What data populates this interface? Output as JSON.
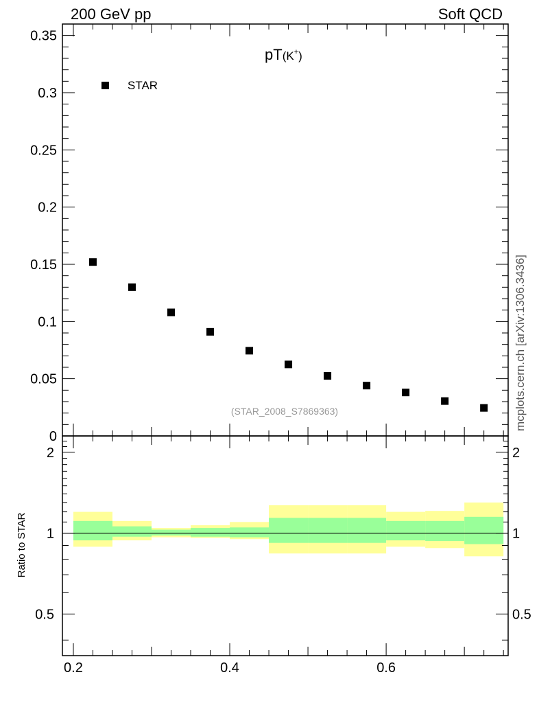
{
  "header": {
    "left": "200 GeV pp",
    "right": "Soft QCD"
  },
  "side_label": "mcplots.cern.ch [arXiv:1306.3436]",
  "chart_data": [
    {
      "type": "scatter",
      "title_main": "pT",
      "title_sub": "(K",
      "title_sup": "+",
      "title_close": ")",
      "legend": {
        "label": "STAR",
        "placement": "top-left"
      },
      "reference": "(STAR_2008_S7869363)",
      "xlim": [
        0.186,
        0.756
      ],
      "ylim": [
        0,
        0.36
      ],
      "y_ticks": [
        0,
        0.05,
        0.1,
        0.15,
        0.2,
        0.25,
        0.3,
        0.35
      ],
      "y_tick_labels": [
        "0",
        "0.05",
        "0.1",
        "0.15",
        "0.2",
        "0.25",
        "0.3",
        "0.35"
      ],
      "series": [
        {
          "name": "STAR",
          "color": "#000000",
          "x": [
            0.225,
            0.275,
            0.325,
            0.375,
            0.425,
            0.475,
            0.525,
            0.575,
            0.625,
            0.675,
            0.725
          ],
          "y": [
            0.152,
            0.13,
            0.108,
            0.091,
            0.0745,
            0.0625,
            0.0525,
            0.044,
            0.038,
            0.0305,
            0.0245
          ]
        }
      ]
    },
    {
      "type": "area",
      "ylabel": "Ratio to STAR",
      "xlim": [
        0.186,
        0.756
      ],
      "ylim": [
        0.35,
        2.3
      ],
      "x_ticks": [
        0.2,
        0.4,
        0.6
      ],
      "x_tick_labels": [
        "0.2",
        "0.4",
        "0.6"
      ],
      "y_ticks": [
        0.5,
        1,
        2
      ],
      "y_tick_labels": [
        "0.5",
        "1",
        "2"
      ],
      "reference_line": 1,
      "bands": {
        "stat_color": "#99ff99",
        "total_color": "#ffff99",
        "bins": [
          {
            "lo": 0.2,
            "hi": 0.25,
            "inner": [
              0.94,
              1.11
            ],
            "outer": [
              0.89,
              1.2
            ]
          },
          {
            "lo": 0.25,
            "hi": 0.3,
            "inner": [
              0.97,
              1.06
            ],
            "outer": [
              0.94,
              1.11
            ]
          },
          {
            "lo": 0.3,
            "hi": 0.35,
            "inner": [
              0.98,
              1.03
            ],
            "outer": [
              0.965,
              1.045
            ]
          },
          {
            "lo": 0.35,
            "hi": 0.4,
            "inner": [
              0.97,
              1.045
            ],
            "outer": [
              0.96,
              1.07
            ]
          },
          {
            "lo": 0.4,
            "hi": 0.45,
            "inner": [
              0.965,
              1.05
            ],
            "outer": [
              0.95,
              1.1
            ]
          },
          {
            "lo": 0.45,
            "hi": 0.5,
            "inner": [
              0.92,
              1.14
            ],
            "outer": [
              0.84,
              1.27
            ]
          },
          {
            "lo": 0.5,
            "hi": 0.55,
            "inner": [
              0.92,
              1.14
            ],
            "outer": [
              0.84,
              1.27
            ]
          },
          {
            "lo": 0.55,
            "hi": 0.6,
            "inner": [
              0.92,
              1.14
            ],
            "outer": [
              0.84,
              1.27
            ]
          },
          {
            "lo": 0.6,
            "hi": 0.65,
            "inner": [
              0.94,
              1.11
            ],
            "outer": [
              0.89,
              1.2
            ]
          },
          {
            "lo": 0.65,
            "hi": 0.7,
            "inner": [
              0.935,
              1.11
            ],
            "outer": [
              0.88,
              1.21
            ]
          },
          {
            "lo": 0.7,
            "hi": 0.75,
            "inner": [
              0.91,
              1.15
            ],
            "outer": [
              0.82,
              1.3
            ]
          }
        ]
      }
    }
  ]
}
